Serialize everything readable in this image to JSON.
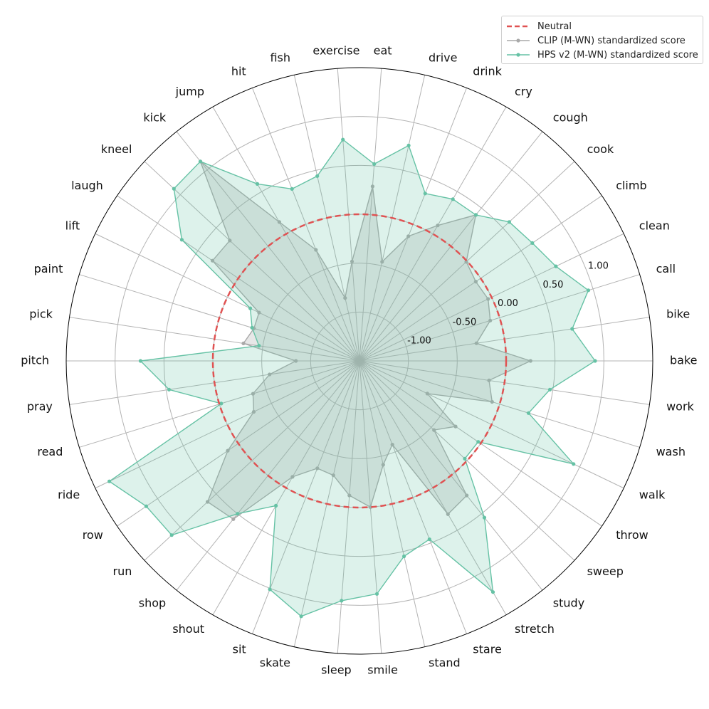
{
  "chart_data": {
    "type": "radar",
    "categories": [
      "bake",
      "bike",
      "call",
      "clean",
      "climb",
      "cook",
      "cough",
      "cry",
      "drink",
      "drive",
      "eat",
      "exercise",
      "fish",
      "hit",
      "jump",
      "kick",
      "kneel",
      "laugh",
      "lift",
      "paint",
      "pick",
      "pitch",
      "pray",
      "read",
      "ride",
      "row",
      "run",
      "shop",
      "shout",
      "sit",
      "skate",
      "sleep",
      "smile",
      "stand",
      "stare",
      "stretch",
      "study",
      "sweep",
      "throw",
      "walk",
      "wash",
      "work"
    ],
    "radial_ticks": [
      -1.0,
      -0.5,
      0.0,
      0.5,
      1.0
    ],
    "radial_tick_labels": [
      "-1.00",
      "-0.50",
      "0.00",
      "0.50",
      "1.00"
    ],
    "rlim": [
      -1.5,
      1.5
    ],
    "neutral": {
      "name": "Neutral",
      "value": 0.0,
      "color": "#e05252"
    },
    "series": [
      {
        "name": "CLIP (M-WN) standardized score",
        "color": "#a9a9a9",
        "values": [
          0.25,
          -0.29,
          -0.1,
          -0.04,
          -0.06,
          -0.01,
          0.41,
          0.1,
          -0.13,
          -0.46,
          0.29,
          -0.48,
          -0.84,
          -0.28,
          0.14,
          1.11,
          0.31,
          0.32,
          -0.36,
          -0.37,
          -0.3,
          -0.85,
          -0.57,
          -0.36,
          -0.3,
          0.13,
          0.62,
          0.57,
          -0.13,
          -0.32,
          -0.3,
          -0.12,
          0.0,
          -0.41,
          -0.58,
          0.31,
          0.26,
          -0.46,
          -0.31,
          -0.73,
          -0.08,
          -0.16
        ]
      },
      {
        "name": "HPS v2 (M-WN) standardized score",
        "color": "#66c2a5",
        "values": [
          0.91,
          0.7,
          0.95,
          0.73,
          0.64,
          0.59,
          0.41,
          0.41,
          0.34,
          0.76,
          0.52,
          0.77,
          0.44,
          0.39,
          0.59,
          1.11,
          1.09,
          0.7,
          -0.26,
          -0.35,
          -0.46,
          0.74,
          0.47,
          -0.02,
          1.34,
          1.14,
          1.12,
          0.5,
          0.21,
          1.01,
          1.18,
          0.96,
          0.89,
          0.55,
          0.46,
          1.23,
          0.55,
          -0.03,
          -0.03,
          0.93,
          0.31,
          0.47
        ]
      }
    ]
  }
}
